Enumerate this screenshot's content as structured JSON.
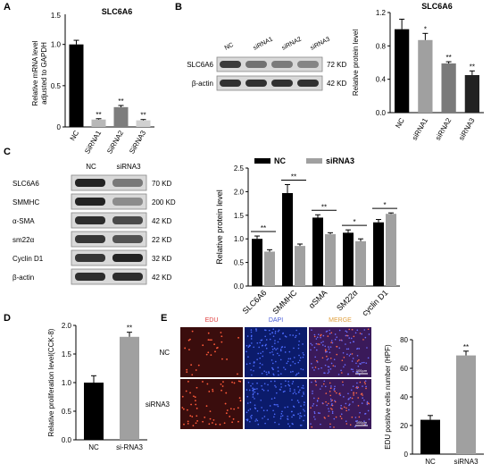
{
  "panel_letters": {
    "a": "A",
    "b": "B",
    "c": "C",
    "d": "D",
    "e": "E"
  },
  "colors": {
    "black": "#000000",
    "gray": "#a0a0a0",
    "light_gray": "#cfcfcf",
    "mid_gray": "#9a9a9a"
  },
  "panelA": {
    "chart_data": {
      "type": "bar",
      "title": "SLC6A6",
      "ylabel": "Relative mRNA level adjusted to GAPDH",
      "ylabel_lines": [
        "Relative mRNA level",
        "adjusted to GAPDH"
      ],
      "categories": [
        "NC",
        "SiRNA1",
        "SiRNA2",
        "SiRNA3"
      ],
      "values": [
        1.0,
        0.09,
        0.24,
        0.08
      ],
      "errors": [
        0.05,
        0.01,
        0.02,
        0.01
      ],
      "significance": [
        "",
        "**",
        "**",
        "**"
      ],
      "colors": [
        "#000000",
        "#b8b8b8",
        "#7d7d7d",
        "#d0d0d0"
      ],
      "ylim": [
        0,
        1.2
      ],
      "yticks": [
        "0",
        "0.5",
        "1.0",
        "1.5"
      ]
    }
  },
  "panelB": {
    "blot": {
      "lanes": [
        "NC",
        "siRNA1",
        "siRNA2",
        "siRNA3"
      ],
      "rows": [
        {
          "label": "SLC6A6",
          "size": "72 KD"
        },
        {
          "label": "β-actin",
          "size": "42 KD"
        }
      ]
    },
    "chart_data": {
      "type": "bar",
      "title": "SLC6A6",
      "ylabel": "Relative protein level",
      "categories": [
        "NC",
        "siRNA1",
        "siRNA2",
        "siRNA3"
      ],
      "values": [
        1.0,
        0.87,
        0.59,
        0.45
      ],
      "errors": [
        0.12,
        0.08,
        0.02,
        0.05
      ],
      "significance": [
        "",
        "*",
        "**",
        "**"
      ],
      "colors": [
        "#000000",
        "#a0a0a0",
        "#7a7a7a",
        "#222222"
      ],
      "ylim": [
        0,
        1.2
      ],
      "yticks": [
        "0.0",
        "0.4",
        "0.8",
        "1.2"
      ]
    }
  },
  "panelC": {
    "blot": {
      "lanes": [
        "NC",
        "siRNA3"
      ],
      "rows": [
        {
          "label": "SLC6A6",
          "size": "70 KD"
        },
        {
          "label": "SMMHC",
          "size": "200 KD"
        },
        {
          "label": "α-SMA",
          "size": "42 KD"
        },
        {
          "label": "sm22α",
          "size": "22 KD"
        },
        {
          "label": "Cyclin D1",
          "size": "32 KD"
        },
        {
          "label": "β-actin",
          "size": "42 KD"
        }
      ]
    },
    "chart_data": {
      "type": "bar",
      "ylabel": "Relative protein level",
      "categories": [
        "SLC6A6",
        "SMMHC",
        "αSMA",
        "SM22α",
        "cyclin D1"
      ],
      "series": [
        {
          "name": "NC",
          "values": [
            1.0,
            1.97,
            1.45,
            1.13,
            1.35
          ],
          "errors": [
            0.06,
            0.18,
            0.06,
            0.06,
            0.06
          ]
        },
        {
          "name": "siRNA3",
          "values": [
            0.73,
            0.85,
            1.1,
            0.95,
            1.53
          ],
          "errors": [
            0.04,
            0.04,
            0.03,
            0.05,
            0.02
          ]
        }
      ],
      "significance": [
        "**",
        "**",
        "**",
        "*",
        "*"
      ],
      "ylim": [
        0,
        2.5
      ],
      "yticks": [
        "0.0",
        "0.5",
        "1.0",
        "1.5",
        "2.0",
        "2.5"
      ],
      "legend": "top"
    }
  },
  "panelD": {
    "chart_data": {
      "type": "bar",
      "ylabel": "Relative proliferation level(CCK-8)",
      "categories": [
        "NC",
        "si-RNA3"
      ],
      "values": [
        1.0,
        1.8
      ],
      "errors": [
        0.12,
        0.08
      ],
      "significance": [
        "",
        "**"
      ],
      "ylim": [
        0,
        2.0
      ],
      "yticks": [
        "0.0",
        "0.5",
        "1.0",
        "1.5",
        "2.0"
      ]
    }
  },
  "panelE": {
    "micrographs": {
      "columns": [
        "EDU",
        "DAPI",
        "MERGE"
      ],
      "column_colors": [
        "#e04040",
        "#4a5ed8",
        "#e0a040"
      ],
      "rows": [
        "NC",
        "siRNA3"
      ],
      "scale_label": "100μm"
    },
    "chart_data": {
      "type": "bar",
      "ylabel": "EDU positive cells number (HPF)",
      "categories": [
        "NC",
        "siRNA3"
      ],
      "values": [
        24,
        69
      ],
      "errors": [
        3,
        3
      ],
      "significance": [
        "",
        "**"
      ],
      "ylim": [
        0,
        80
      ],
      "yticks": [
        "0",
        "20",
        "40",
        "60",
        "80"
      ]
    }
  }
}
